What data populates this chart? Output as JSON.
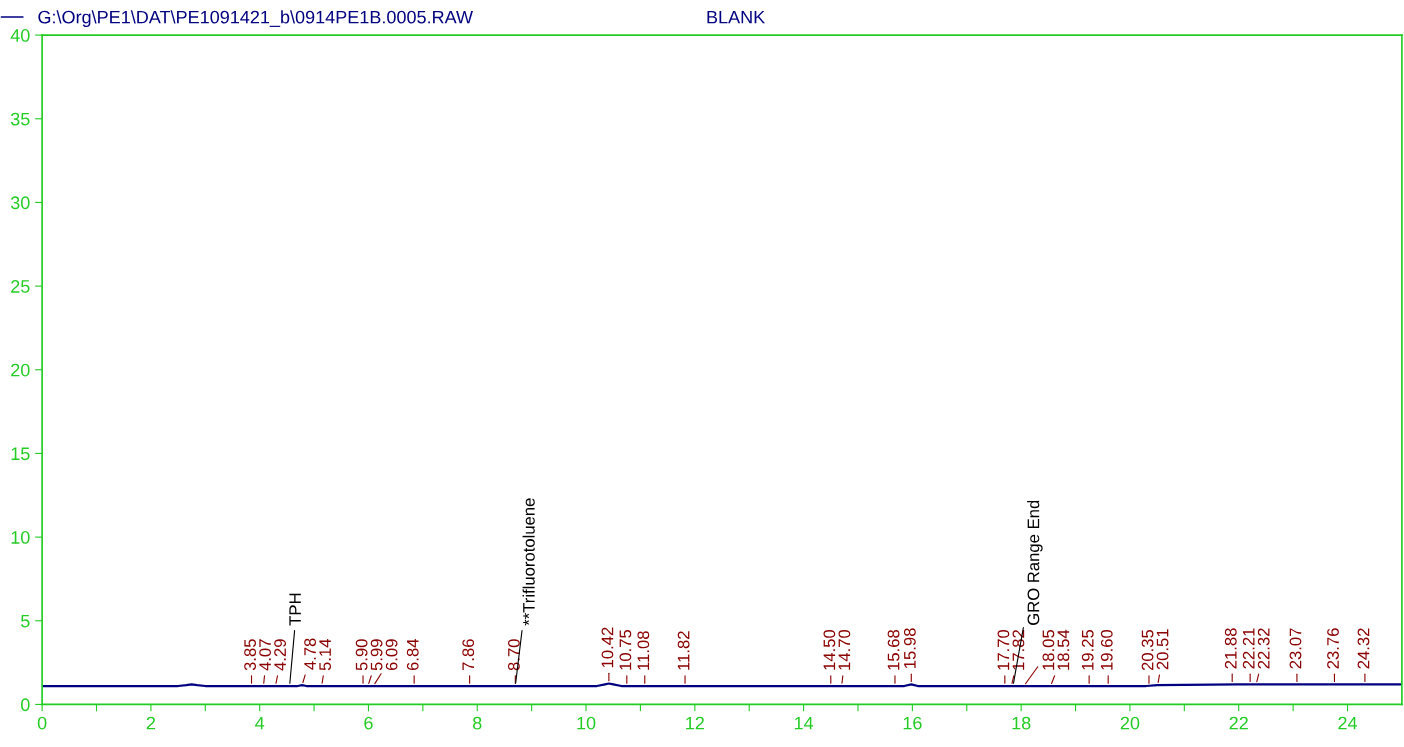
{
  "chart_data": {
    "type": "line",
    "title": "BLANK",
    "xlim": [
      0,
      25
    ],
    "ylim": [
      0,
      40
    ],
    "xticks": [
      0,
      {
        "value": 1,
        "label": null
      },
      2,
      {
        "value": 3,
        "label": null
      },
      4,
      {
        "value": 5,
        "label": null
      },
      6,
      {
        "value": 7,
        "label": null
      },
      8,
      {
        "value": 9,
        "label": null
      },
      10,
      {
        "value": 11,
        "label": null
      },
      12,
      {
        "value": 13,
        "label": null
      },
      14,
      {
        "value": 15,
        "label": null
      },
      16,
      {
        "value": 17,
        "label": null
      },
      18,
      {
        "value": 19,
        "label": null
      },
      20,
      {
        "value": 21,
        "label": null
      },
      22,
      {
        "value": 23,
        "label": null
      },
      24
    ],
    "yticks": [
      0,
      5,
      10,
      15,
      20,
      25,
      30,
      35,
      40
    ],
    "grid": false,
    "legend": "top left",
    "series": [
      {
        "name": "G:\\Org\\PE1\\DAT\\PE1091421_b\\0914PE1B.0005.RAW",
        "color": "#000080",
        "x": [
          0,
          2.5,
          2.65,
          2.75,
          2.85,
          3.0,
          4.7,
          4.78,
          4.86,
          10.2,
          10.35,
          10.42,
          10.5,
          10.65,
          15.85,
          15.98,
          16.1,
          20.3,
          20.5,
          22.0,
          25
        ],
        "values": [
          1.1,
          1.1,
          1.15,
          1.2,
          1.15,
          1.1,
          1.1,
          1.15,
          1.1,
          1.1,
          1.2,
          1.25,
          1.2,
          1.1,
          1.1,
          1.2,
          1.1,
          1.1,
          1.15,
          1.2,
          1.2
        ]
      }
    ],
    "annotations": [
      {
        "text": "3.85",
        "x": 3.85,
        "y": 1.1
      },
      {
        "text": "4.07",
        "x": 4.07,
        "y": 1.1
      },
      {
        "text": "4.29",
        "x": 4.29,
        "y": 1.1
      },
      {
        "text": "4.78",
        "x": 4.78,
        "y": 1.15
      },
      {
        "text": "5.14",
        "x": 5.14,
        "y": 1.1
      },
      {
        "text": "5.90",
        "x": 5.9,
        "y": 1.1
      },
      {
        "text": "5.99",
        "x": 5.99,
        "y": 1.1
      },
      {
        "text": "6.09",
        "x": 6.09,
        "y": 1.1
      },
      {
        "text": "6.84",
        "x": 6.84,
        "y": 1.1
      },
      {
        "text": "7.86",
        "x": 7.86,
        "y": 1.1
      },
      {
        "text": "8.70",
        "x": 8.7,
        "y": 1.1
      },
      {
        "text": "10.42",
        "x": 10.42,
        "y": 1.25
      },
      {
        "text": "10.75",
        "x": 10.75,
        "y": 1.1
      },
      {
        "text": "11.08",
        "x": 11.08,
        "y": 1.1
      },
      {
        "text": "11.82",
        "x": 11.82,
        "y": 1.1
      },
      {
        "text": "14.50",
        "x": 14.5,
        "y": 1.1
      },
      {
        "text": "14.70",
        "x": 14.7,
        "y": 1.1
      },
      {
        "text": "15.68",
        "x": 15.68,
        "y": 1.1
      },
      {
        "text": "15.98",
        "x": 15.98,
        "y": 1.2
      },
      {
        "text": "17.70",
        "x": 17.7,
        "y": 1.1
      },
      {
        "text": "17.82",
        "x": 17.82,
        "y": 1.1
      },
      {
        "text": "18.05",
        "x": 18.05,
        "y": 1.1
      },
      {
        "text": "18.54",
        "x": 18.54,
        "y": 1.1
      },
      {
        "text": "19.25",
        "x": 19.25,
        "y": 1.1
      },
      {
        "text": "19.60",
        "x": 19.6,
        "y": 1.1
      },
      {
        "text": "20.35",
        "x": 20.35,
        "y": 1.1
      },
      {
        "text": "20.51",
        "x": 20.51,
        "y": 1.15
      },
      {
        "text": "21.88",
        "x": 21.88,
        "y": 1.2
      },
      {
        "text": "22.21",
        "x": 22.21,
        "y": 1.2
      },
      {
        "text": "22.32",
        "x": 22.32,
        "y": 1.2
      },
      {
        "text": "23.07",
        "x": 23.07,
        "y": 1.2
      },
      {
        "text": "23.76",
        "x": 23.76,
        "y": 1.2
      },
      {
        "text": "24.32",
        "x": 24.32,
        "y": 1.2
      },
      {
        "text": "TPH",
        "x": 4.55,
        "y": 1.1
      },
      {
        "text": "**Trifluorotoluene",
        "x": 8.7,
        "y": 1.1
      },
      {
        "text": "GRO Range End",
        "x": 17.85,
        "y": 1.1
      }
    ]
  }
}
